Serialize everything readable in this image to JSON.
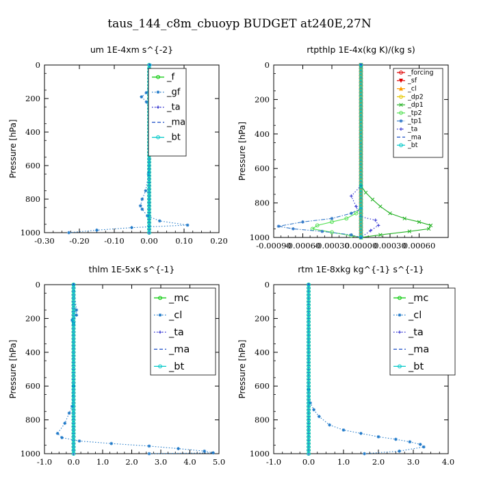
{
  "figure": {
    "title": "taus_144_c8m_cbuoyp  BUDGET at240E,27N"
  },
  "chart_data": [
    {
      "type": "line",
      "title": "um   1E-4xm  s^{-2}",
      "ylabel": "Pressure  [hPa]",
      "xlim": [
        -0.3,
        0.2
      ],
      "ylim": [
        1000,
        0
      ],
      "xticks": [
        "-0.30",
        "-0.20",
        "-0.10",
        "0.00",
        "0.10",
        "0.20"
      ],
      "xtick_values": [
        -0.3,
        -0.2,
        -0.1,
        0.0,
        0.1,
        0.2
      ],
      "yticks": [
        "0",
        "200",
        "400",
        "600",
        "800",
        "1000"
      ],
      "ytick_values": [
        0,
        200,
        400,
        600,
        800,
        1000
      ],
      "legend": "upper-right",
      "series": [
        {
          "name": "_f",
          "color": "#00c800",
          "dash": "solid",
          "marker": "o",
          "x": [
            0.0,
            0.0
          ],
          "y": [
            0,
            1000
          ]
        },
        {
          "name": "_gf",
          "color": "#1e78c8",
          "dash": "dotted",
          "marker": "*",
          "x": [
            0.003,
            0.005,
            0.0,
            -0.008,
            -0.022,
            -0.008,
            0.0,
            0.003,
            0.0,
            -0.002,
            -0.01,
            -0.02,
            -0.025,
            -0.02,
            -0.005,
            0.03,
            0.11,
            -0.05,
            -0.15,
            -0.23
          ],
          "y": [
            0,
            100,
            150,
            165,
            190,
            220,
            260,
            300,
            500,
            650,
            750,
            800,
            840,
            860,
            900,
            930,
            955,
            970,
            985,
            1000
          ]
        },
        {
          "name": "_ta",
          "color": "#1414c8",
          "dash": "dotted",
          "marker": "+",
          "x": [
            0.0,
            0.0
          ],
          "y": [
            0,
            1000
          ]
        },
        {
          "name": "_ma",
          "color": "#1e50c8",
          "dash": "dashed",
          "marker": "",
          "x": [
            0.0,
            0.0
          ],
          "y": [
            0,
            1000
          ]
        },
        {
          "name": "_bt",
          "color": "#00c8c8",
          "dash": "solid",
          "marker": "o",
          "x": [
            0.0,
            0.0
          ],
          "y": [
            0,
            1000
          ]
        }
      ]
    },
    {
      "type": "line",
      "title": "rtpthlp   1E-4x(kg K)/(kg s)",
      "ylabel": "Pressure  [hPa]",
      "xlim": [
        -0.0009,
        0.0009
      ],
      "ylim": [
        1000,
        0
      ],
      "xticks": [
        "-0.00090",
        "-0.00060",
        "-0.00030",
        "0.00000",
        "0.00030",
        "0.00060"
      ],
      "xtick_values": [
        -0.0009,
        -0.0006,
        -0.0003,
        0.0,
        0.0003,
        0.0006
      ],
      "yticks": [
        "0",
        "200",
        "400",
        "600",
        "800",
        "1000"
      ],
      "ytick_values": [
        0,
        200,
        400,
        600,
        800,
        1000
      ],
      "legend": "upper-right",
      "series": [
        {
          "name": "_forcing",
          "color": "#e00000",
          "dash": "solid",
          "marker": "o",
          "x": [
            0.0,
            0.0
          ],
          "y": [
            0,
            1000
          ]
        },
        {
          "name": "_sf",
          "color": "#e00000",
          "dash": "solid",
          "marker": "v",
          "x": [
            0.0,
            0.0
          ],
          "y": [
            0,
            1000
          ]
        },
        {
          "name": "_cl",
          "color": "#ff9c00",
          "dash": "solid",
          "marker": "^",
          "x": [
            0.0,
            0.0
          ],
          "y": [
            0,
            1000
          ]
        },
        {
          "name": "_dp2",
          "color": "#e6c800",
          "dash": "solid",
          "marker": "o",
          "x": [
            0.0,
            0.0
          ],
          "y": [
            0,
            1000
          ]
        },
        {
          "name": "_dp1",
          "color": "#20b020",
          "dash": "solid",
          "marker": "x",
          "x": [
            0.0,
            0.0,
            5e-05,
            0.00012,
            0.0002,
            0.0003,
            0.00045,
            0.0006,
            0.00072,
            0.0007,
            0.0005,
            0.0002,
            0.0
          ],
          "y": [
            0,
            700,
            740,
            780,
            820,
            860,
            890,
            910,
            930,
            950,
            965,
            985,
            1000
          ]
        },
        {
          "name": "_tp2",
          "color": "#50e050",
          "dash": "solid",
          "marker": "o",
          "x": [
            0.0,
            0.0,
            -5e-05,
            -0.00015,
            -0.0003,
            -0.00045,
            -0.0005,
            -0.0003,
            -0.0001,
            0.0
          ],
          "y": [
            0,
            820,
            860,
            890,
            910,
            930,
            950,
            970,
            990,
            1000
          ]
        },
        {
          "name": "_tp1",
          "color": "#3278c8",
          "dash": "dashdot",
          "marker": "*",
          "x": [
            0.0,
            0.0,
            -0.0001,
            -0.0003,
            -0.0006,
            -0.00085,
            -0.0007,
            -0.0004,
            -0.0001,
            0.0
          ],
          "y": [
            0,
            830,
            860,
            890,
            910,
            935,
            950,
            965,
            985,
            1000
          ]
        },
        {
          "name": "_ta",
          "color": "#2828d0",
          "dash": "dotted",
          "marker": "+",
          "x": [
            0.0,
            0.0,
            -0.0001,
            -5e-05,
            0.0,
            0.00015,
            0.00018,
            0.0001,
            0.0
          ],
          "y": [
            0,
            700,
            760,
            820,
            880,
            900,
            930,
            960,
            1000
          ]
        },
        {
          "name": "_ma",
          "color": "#1e50c8",
          "dash": "dashed",
          "marker": "",
          "x": [
            0.0,
            0.0
          ],
          "y": [
            0,
            1000
          ]
        },
        {
          "name": "_bt",
          "color": "#00c8c8",
          "dash": "solid",
          "marker": "o",
          "x": [
            0.0,
            0.0
          ],
          "y": [
            0,
            1000
          ]
        }
      ]
    },
    {
      "type": "line",
      "title": "thlm   1E-5xK  s^{-1}",
      "ylabel": "Pressure  [hPa]",
      "xlim": [
        -1.0,
        5.0
      ],
      "ylim": [
        1000,
        0
      ],
      "xticks": [
        "-1.0",
        "0.0",
        "1.0",
        "2.0",
        "3.0",
        "4.0",
        "5.0"
      ],
      "xtick_values": [
        -1.0,
        0.0,
        1.0,
        2.0,
        3.0,
        4.0,
        5.0
      ],
      "yticks": [
        "0",
        "200",
        "400",
        "600",
        "800",
        "1000"
      ],
      "ytick_values": [
        0,
        200,
        400,
        600,
        800,
        1000
      ],
      "legend": "upper-right",
      "series": [
        {
          "name": "_mc",
          "color": "#00c800",
          "dash": "solid",
          "marker": "o",
          "x": [
            0.0,
            0.0
          ],
          "y": [
            0,
            1000
          ]
        },
        {
          "name": "_cl",
          "color": "#1e78c8",
          "dash": "dotted",
          "marker": "*",
          "x": [
            0.0,
            0.1,
            0.1,
            -0.05,
            0.0,
            0.0,
            -0.05,
            -0.15,
            -0.3,
            -0.55,
            -0.4,
            0.2,
            1.3,
            2.6,
            3.6,
            4.5,
            4.8,
            2.6
          ],
          "y": [
            0,
            150,
            180,
            210,
            230,
            600,
            720,
            760,
            820,
            880,
            905,
            925,
            940,
            955,
            970,
            985,
            995,
            1000
          ]
        },
        {
          "name": "_ta",
          "color": "#2828d0",
          "dash": "dotted",
          "marker": "+",
          "x": [
            0.0,
            0.0
          ],
          "y": [
            0,
            1000
          ]
        },
        {
          "name": "_ma",
          "color": "#1e50c8",
          "dash": "dashed",
          "marker": "",
          "x": [
            0.0,
            0.0
          ],
          "y": [
            0,
            1000
          ]
        },
        {
          "name": "_bt",
          "color": "#00c8c8",
          "dash": "solid",
          "marker": "o",
          "x": [
            0.0,
            0.0
          ],
          "y": [
            0,
            1000
          ]
        }
      ]
    },
    {
      "type": "line",
      "title": "rtm   1E-8xkg  kg^{-1}  s^{-1}",
      "ylabel": "Pressure  [hPa]",
      "xlim": [
        -1.0,
        4.0
      ],
      "ylim": [
        1000,
        0
      ],
      "xticks": [
        "-1.0",
        "0.0",
        "1.0",
        "2.0",
        "3.0",
        "4.0"
      ],
      "xtick_values": [
        -1.0,
        0.0,
        1.0,
        2.0,
        3.0,
        4.0
      ],
      "yticks": [
        "0",
        "200",
        "400",
        "600",
        "800",
        "1000"
      ],
      "ytick_values": [
        0,
        200,
        400,
        600,
        800,
        1000
      ],
      "legend": "upper-right",
      "series": [
        {
          "name": "_mc",
          "color": "#00c800",
          "dash": "solid",
          "marker": "o",
          "x": [
            0.0,
            0.0
          ],
          "y": [
            0,
            1000
          ]
        },
        {
          "name": "_cl",
          "color": "#1e78c8",
          "dash": "dotted",
          "marker": "*",
          "x": [
            0.0,
            0.0,
            0.05,
            0.15,
            0.3,
            0.6,
            1.0,
            1.5,
            2.0,
            2.5,
            2.9,
            3.2,
            3.3,
            2.6,
            1.6
          ],
          "y": [
            0,
            620,
            700,
            740,
            780,
            830,
            860,
            880,
            900,
            915,
            930,
            945,
            960,
            985,
            1000
          ]
        },
        {
          "name": "_ta",
          "color": "#2828d0",
          "dash": "dotted",
          "marker": "+",
          "x": [
            0.0,
            0.0
          ],
          "y": [
            0,
            1000
          ]
        },
        {
          "name": "_ma",
          "color": "#1e50c8",
          "dash": "dashed",
          "marker": "",
          "x": [
            0.0,
            0.0
          ],
          "y": [
            0,
            1000
          ]
        },
        {
          "name": "_bt",
          "color": "#00c8c8",
          "dash": "solid",
          "marker": "o",
          "x": [
            0.0,
            0.0
          ],
          "y": [
            0,
            1000
          ]
        }
      ]
    }
  ]
}
